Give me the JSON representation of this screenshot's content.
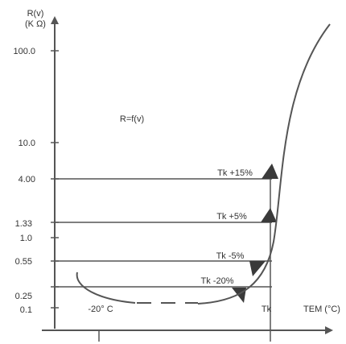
{
  "chart_data": {
    "type": "line",
    "title": "",
    "annotation": "R=f(v)",
    "ylabel": [
      "R(v)",
      "(K Ω)"
    ],
    "xlabel": "TEM (°C)",
    "yticks": [
      {
        "label": "100.0",
        "value": 100.0
      },
      {
        "label": "10.0",
        "value": 10.0
      },
      {
        "label": "4.00",
        "value": 4.0
      },
      {
        "label": "1.33",
        "value": 1.33
      },
      {
        "label": "1.0",
        "value": 1.0
      },
      {
        "label": "0.55",
        "value": 0.55
      },
      {
        "label": "0.25",
        "value": 0.25
      },
      {
        "label": "0.1",
        "value": 0.1
      }
    ],
    "xmarks": [
      {
        "label": "-20° C"
      },
      {
        "label": "Tk"
      }
    ],
    "tolerance_lines": [
      {
        "label": "Tk +15%",
        "value": 4.0
      },
      {
        "label": "Tk +5%",
        "value": 1.33
      },
      {
        "label": "Tk -5%",
        "value": 0.55
      },
      {
        "label": "Tk -20%",
        "value": 0.25
      }
    ],
    "colors": {
      "axis": "#555555",
      "curve": "#555555",
      "marker": "#3a3a3a",
      "text": "#333333"
    }
  }
}
